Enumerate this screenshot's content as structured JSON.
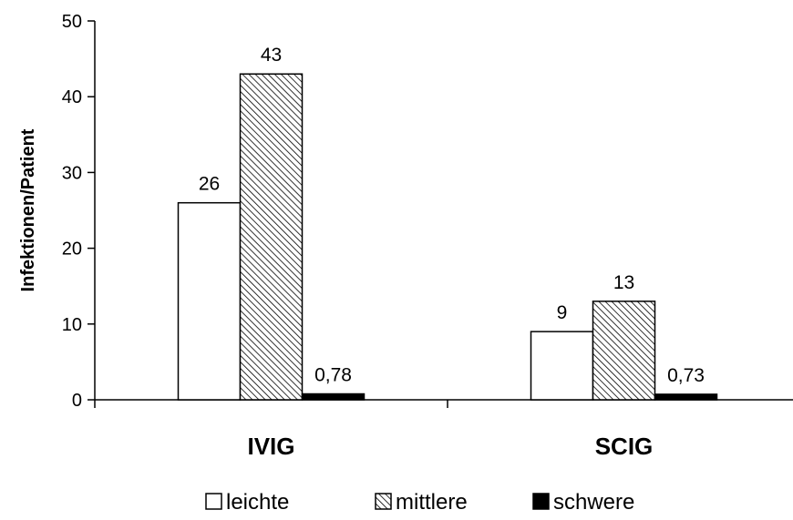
{
  "chart_data": {
    "type": "bar",
    "title": "",
    "xlabel": "",
    "ylabel": "Infektionen/Patient",
    "categories": [
      "IVIG",
      "SCIG"
    ],
    "series": [
      {
        "name": "leichte",
        "values": [
          26,
          9
        ],
        "value_labels": [
          "26",
          "9"
        ],
        "fill": "#ffffff",
        "pattern": "none"
      },
      {
        "name": "mittlere",
        "values": [
          43,
          13
        ],
        "value_labels": [
          "43",
          "13"
        ],
        "fill": "#ffffff",
        "pattern": "diagonal-hatch"
      },
      {
        "name": "schwere",
        "values": [
          0.78,
          0.73
        ],
        "value_labels": [
          "0,78",
          "0,73"
        ],
        "fill": "#000000",
        "pattern": "none"
      }
    ],
    "ylim": [
      0,
      50
    ],
    "yticks": [
      0,
      10,
      20,
      30,
      40,
      50
    ],
    "ytick_labels": [
      "0",
      "10",
      "20",
      "30",
      "40",
      "50"
    ],
    "grid": false,
    "legend_position": "bottom"
  }
}
